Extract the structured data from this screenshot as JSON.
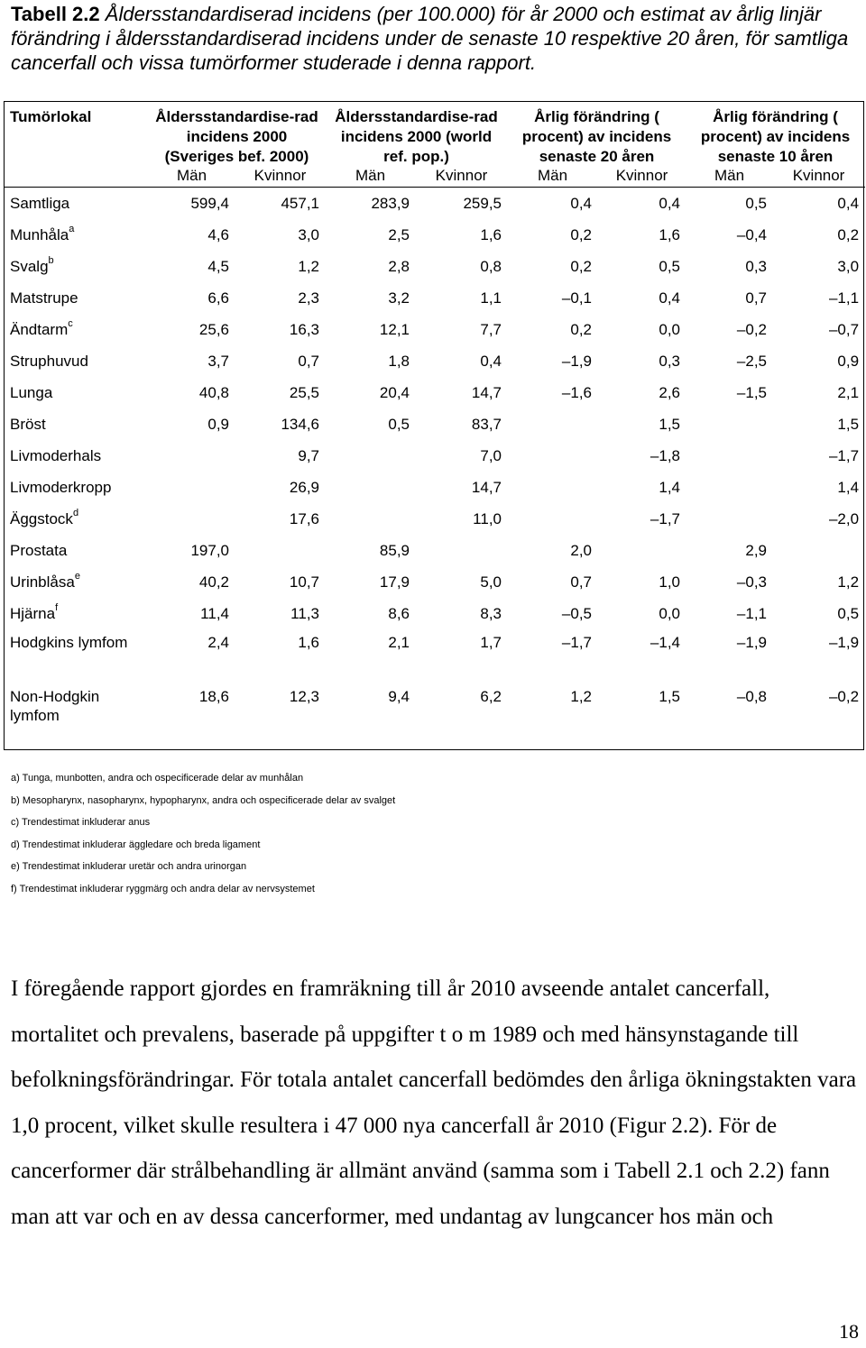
{
  "caption": {
    "label": "Tabell 2.2",
    "text": "Åldersstandardiserad incidens (per 100.000) för år 2000 och estimat av årlig linjär förändring i åldersstandardiserad incidens under de senaste 10 respektive 20 åren, för samtliga cancerfall och vissa tumörformer studerade i denna rapport."
  },
  "table": {
    "headers": [
      "Tumörlokal",
      "Åldersstandardise-rad incidens 2000 (Sveriges bef. 2000)",
      "Åldersstandardise-rad incidens 2000 (world ref. pop.)",
      "Årlig förändring ( procent) av incidens senaste 20 åren",
      "Årlig förändring ( procent) av incidens senaste 10 åren"
    ],
    "subheaders": [
      "Män",
      "Kvinnor",
      "Män",
      "Kvinnor",
      "Män",
      "Kvinnor",
      "Män",
      "Kvinnor"
    ],
    "rows": [
      {
        "name": "Samtliga",
        "sup": "",
        "values": [
          "599,4",
          "457,1",
          "283,9",
          "259,5",
          "0,4",
          "0,4",
          "0,5",
          "0,4"
        ]
      },
      {
        "name": "Munhåla",
        "sup": "a",
        "values": [
          "4,6",
          "3,0",
          "2,5",
          "1,6",
          "0,2",
          "1,6",
          "–0,4",
          "0,2"
        ]
      },
      {
        "name": "Svalg",
        "sup": "b",
        "values": [
          "4,5",
          "1,2",
          "2,8",
          "0,8",
          "0,2",
          "0,5",
          "0,3",
          "3,0"
        ]
      },
      {
        "name": "Matstrupe",
        "sup": "",
        "values": [
          "6,6",
          "2,3",
          "3,2",
          "1,1",
          "–0,1",
          "0,4",
          "0,7",
          "–1,1"
        ]
      },
      {
        "name": "Ändtarm",
        "sup": "c",
        "values": [
          "25,6",
          "16,3",
          "12,1",
          "7,7",
          "0,2",
          "0,0",
          "–0,2",
          "–0,7"
        ]
      },
      {
        "name": "Struphuvud",
        "sup": "",
        "values": [
          "3,7",
          "0,7",
          "1,8",
          "0,4",
          "–1,9",
          "0,3",
          "–2,5",
          "0,9"
        ]
      },
      {
        "name": "Lunga",
        "sup": "",
        "values": [
          "40,8",
          "25,5",
          "20,4",
          "14,7",
          "–1,6",
          "2,6",
          "–1,5",
          "2,1"
        ]
      },
      {
        "name": "Bröst",
        "sup": "",
        "values": [
          "0,9",
          "134,6",
          "0,5",
          "83,7",
          "",
          "1,5",
          "",
          "1,5"
        ]
      },
      {
        "name": "Livmoderhals",
        "sup": "",
        "values": [
          "",
          "9,7",
          "",
          "7,0",
          "",
          "–1,8",
          "",
          "–1,7"
        ]
      },
      {
        "name": "Livmoderkropp",
        "sup": "",
        "values": [
          "",
          "26,9",
          "",
          "14,7",
          "",
          "1,4",
          "",
          "1,4"
        ]
      },
      {
        "name": "Äggstock",
        "sup": "d",
        "values": [
          "",
          "17,6",
          "",
          "11,0",
          "",
          "–1,7",
          "",
          "–2,0"
        ]
      },
      {
        "name": "Prostata",
        "sup": "",
        "values": [
          "197,0",
          "",
          "85,9",
          "",
          "2,0",
          "",
          "2,9",
          ""
        ]
      },
      {
        "name": "Urinblåsa",
        "sup": "e",
        "values": [
          "40,2",
          "10,7",
          "17,9",
          "5,0",
          "0,7",
          "1,0",
          "–0,3",
          "1,2"
        ]
      },
      {
        "name": "Hjärna",
        "sup": "f",
        "values": [
          "11,4",
          "11,3",
          "8,6",
          "8,3",
          "–0,5",
          "0,0",
          "–1,1",
          "0,5"
        ]
      },
      {
        "name": "Hodgkins lymfom",
        "sup": "",
        "values": [
          "2,4",
          "1,6",
          "2,1",
          "1,7",
          "–1,7",
          "–1,4",
          "–1,9",
          "–1,9"
        ]
      },
      {
        "name": "Non-Hodgkin lymfom",
        "sup": "",
        "values": [
          "18,6",
          "12,3",
          "9,4",
          "6,2",
          "1,2",
          "1,5",
          "–0,8",
          "–0,2"
        ]
      }
    ]
  },
  "footnotes": [
    "a) Tunga, munbotten, andra och ospecificerade delar av munhålan",
    "b) Mesopharynx, nasopharynx, hypopharynx, andra och ospecificerade delar av svalget",
    "c) Trendestimat inkluderar anus",
    "d) Trendestimat inkluderar äggledare och breda ligament",
    "e) Trendestimat inkluderar uretär och andra urinorgan",
    "f) Trendestimat inkluderar ryggmärg och andra delar av nervsystemet"
  ],
  "body_text": "I föregående rapport gjordes en framräkning till år 2010 avseende antalet cancerfall, mortalitet och prevalens, baserade på uppgifter t o m 1989 och med hänsynstagande till befolkningsförändringar. För totala antalet cancerfall bedömdes den årliga ökningstakten vara 1,0 procent, vilket skulle resultera i 47 000 nya cancerfall år 2010 (Figur 2.2). För de cancerformer där strålbehandling är allmänt använd (samma som i Tabell 2.1 och 2.2) fann man att var och en av dessa cancerformer, med undantag av lungcancer hos män och",
  "page_number": "18"
}
